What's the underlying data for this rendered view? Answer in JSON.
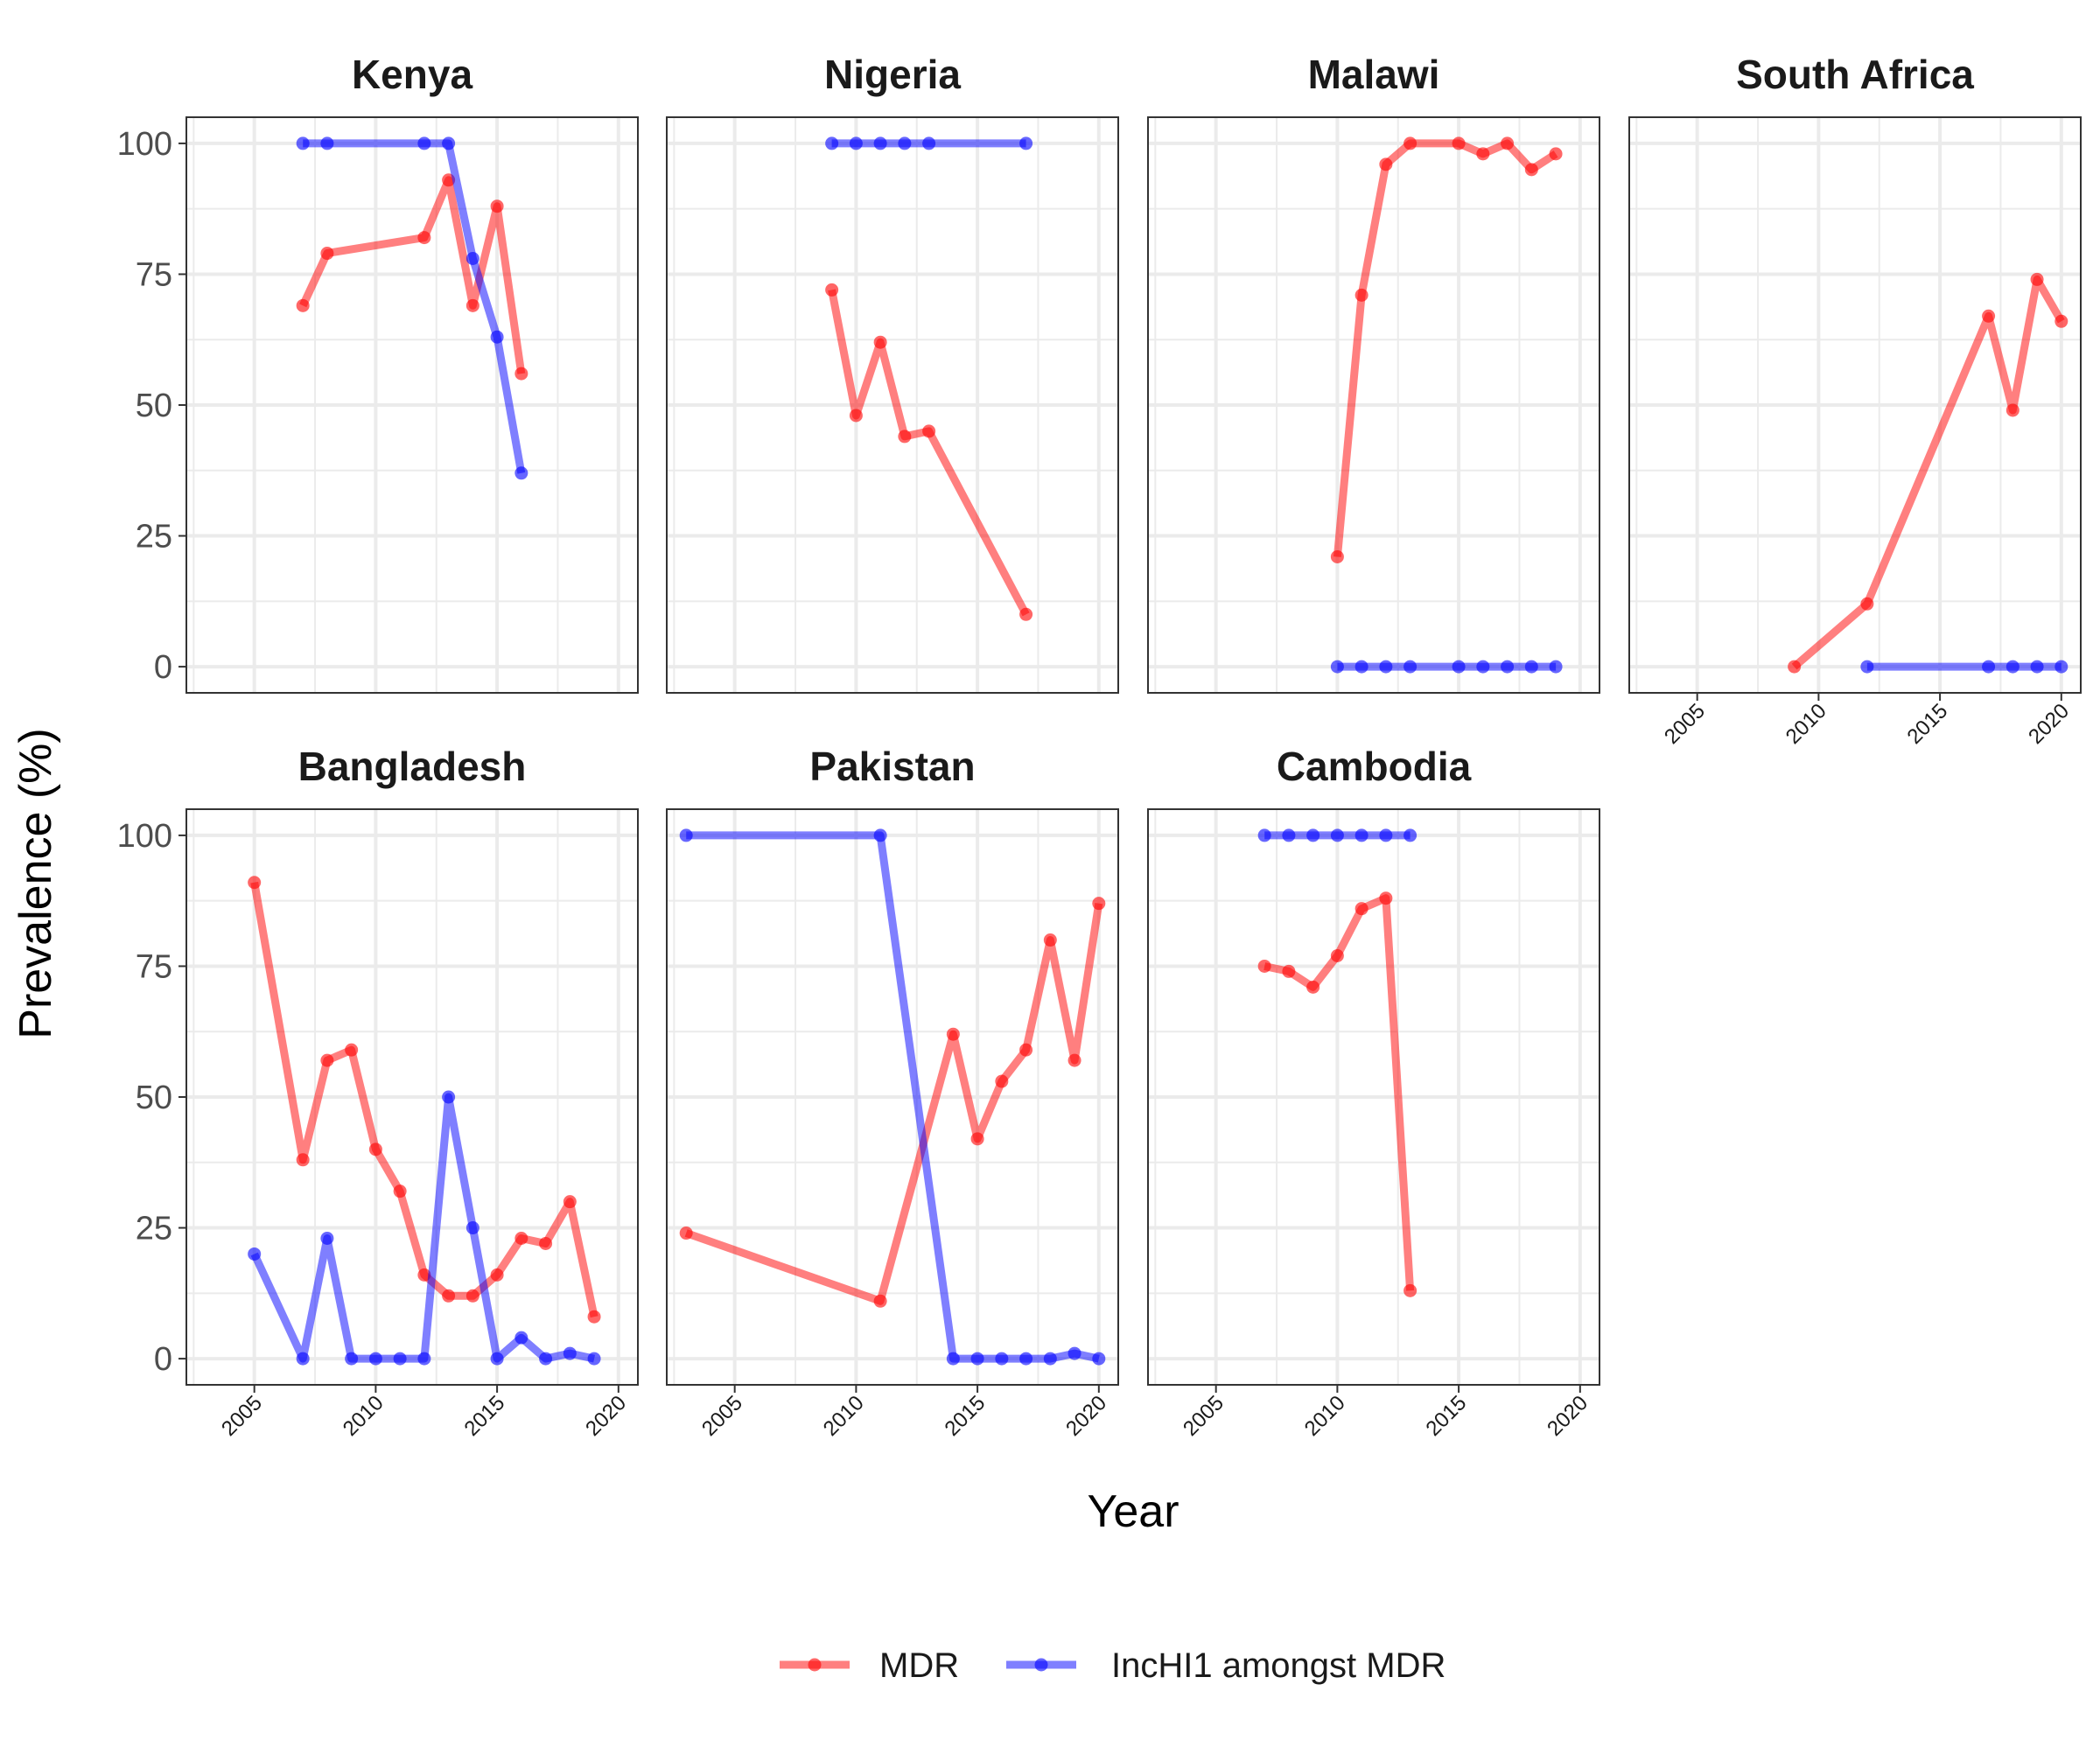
{
  "figure": {
    "y_label": "Prevalence (%)",
    "x_label": "Year"
  },
  "colors": {
    "mdr": "#ff0000",
    "inchi1": "#0000ff",
    "grid": "#ebebeb",
    "panel_border": "#333333"
  },
  "legend": {
    "items": [
      {
        "key": "mdr",
        "label": "MDR"
      },
      {
        "key": "inchi1",
        "label": "IncHI1 amongst MDR"
      }
    ]
  },
  "chart_data": {
    "type": "line",
    "title": "",
    "xlabel": "Year",
    "ylabel": "Prevalence (%)",
    "xlim": [
      2002.2,
      2020.8
    ],
    "ylim": [
      -5,
      105
    ],
    "x_ticks": [
      2005,
      2010,
      2015,
      2020
    ],
    "y_ticks": [
      0,
      25,
      50,
      75,
      100
    ],
    "grid": true,
    "legend_position": "bottom",
    "facets": [
      {
        "title": "Kenya",
        "series": [
          {
            "name": "MDR",
            "key": "mdr",
            "x": [
              2007,
              2008,
              2012,
              2013,
              2014,
              2015,
              2016
            ],
            "y": [
              69,
              79,
              82,
              93,
              69,
              88,
              56
            ]
          },
          {
            "name": "IncHI1 amongst MDR",
            "key": "inchi1",
            "x": [
              2007,
              2008,
              2012,
              2013,
              2014,
              2015,
              2016
            ],
            "y": [
              100,
              100,
              100,
              100,
              78,
              63,
              37
            ]
          }
        ]
      },
      {
        "title": "Nigeria",
        "series": [
          {
            "name": "MDR",
            "key": "mdr",
            "x": [
              2009,
              2010,
              2011,
              2012,
              2013,
              2017
            ],
            "y": [
              72,
              48,
              62,
              44,
              45,
              10
            ]
          },
          {
            "name": "IncHI1 amongst MDR",
            "key": "inchi1",
            "x": [
              2009,
              2010,
              2011,
              2012,
              2013,
              2017
            ],
            "y": [
              100,
              100,
              100,
              100,
              100,
              100
            ]
          }
        ]
      },
      {
        "title": "Malawi",
        "series": [
          {
            "name": "MDR",
            "key": "mdr",
            "x": [
              2010,
              2011,
              2012,
              2013,
              2015,
              2016,
              2017,
              2018,
              2019
            ],
            "y": [
              21,
              71,
              96,
              100,
              100,
              98,
              100,
              95,
              98
            ]
          },
          {
            "name": "IncHI1 amongst MDR",
            "key": "inchi1",
            "x": [
              2010,
              2011,
              2012,
              2013,
              2015,
              2016,
              2017,
              2018,
              2019
            ],
            "y": [
              0,
              0,
              0,
              0,
              0,
              0,
              0,
              0,
              0
            ]
          }
        ]
      },
      {
        "title": "South Africa",
        "series": [
          {
            "name": "MDR",
            "key": "mdr",
            "x": [
              2009,
              2012,
              2017,
              2018,
              2019,
              2020
            ],
            "y": [
              0,
              12,
              67,
              49,
              74,
              66
            ]
          },
          {
            "name": "IncHI1 amongst MDR",
            "key": "inchi1",
            "x": [
              2012,
              2017,
              2018,
              2019,
              2020
            ],
            "y": [
              0,
              0,
              0,
              0,
              0
            ]
          }
        ]
      },
      {
        "title": "Bangladesh",
        "series": [
          {
            "name": "MDR",
            "key": "mdr",
            "x": [
              2005,
              2007,
              2008,
              2009,
              2010,
              2011,
              2012,
              2013,
              2014,
              2015,
              2016,
              2017,
              2018,
              2019
            ],
            "y": [
              91,
              38,
              57,
              59,
              40,
              32,
              16,
              12,
              12,
              16,
              23,
              22,
              30,
              8
            ]
          },
          {
            "name": "IncHI1 amongst MDR",
            "key": "inchi1",
            "x": [
              2005,
              2007,
              2008,
              2009,
              2010,
              2011,
              2012,
              2013,
              2014,
              2015,
              2016,
              2017,
              2018,
              2019
            ],
            "y": [
              20,
              0,
              23,
              0,
              0,
              0,
              0,
              50,
              25,
              0,
              4,
              0,
              1,
              0
            ]
          }
        ]
      },
      {
        "title": "Pakistan",
        "series": [
          {
            "name": "MDR",
            "key": "mdr",
            "x": [
              2003,
              2011,
              2014,
              2015,
              2016,
              2017,
              2018,
              2019,
              2020
            ],
            "y": [
              24,
              11,
              62,
              42,
              53,
              59,
              80,
              57,
              87
            ]
          },
          {
            "name": "IncHI1 amongst MDR",
            "key": "inchi1",
            "x": [
              2003,
              2011,
              2014,
              2015,
              2016,
              2017,
              2018,
              2019,
              2020
            ],
            "y": [
              100,
              100,
              0,
              0,
              0,
              0,
              0,
              1,
              0
            ]
          }
        ]
      },
      {
        "title": "Cambodia",
        "series": [
          {
            "name": "MDR",
            "key": "mdr",
            "x": [
              2007,
              2008,
              2009,
              2010,
              2011,
              2012,
              2013
            ],
            "y": [
              75,
              74,
              71,
              77,
              86,
              88,
              13
            ]
          },
          {
            "name": "IncHI1 amongst MDR",
            "key": "inchi1",
            "x": [
              2007,
              2008,
              2009,
              2010,
              2011,
              2012,
              2013
            ],
            "y": [
              100,
              100,
              100,
              100,
              100,
              100,
              100
            ]
          }
        ]
      }
    ]
  }
}
